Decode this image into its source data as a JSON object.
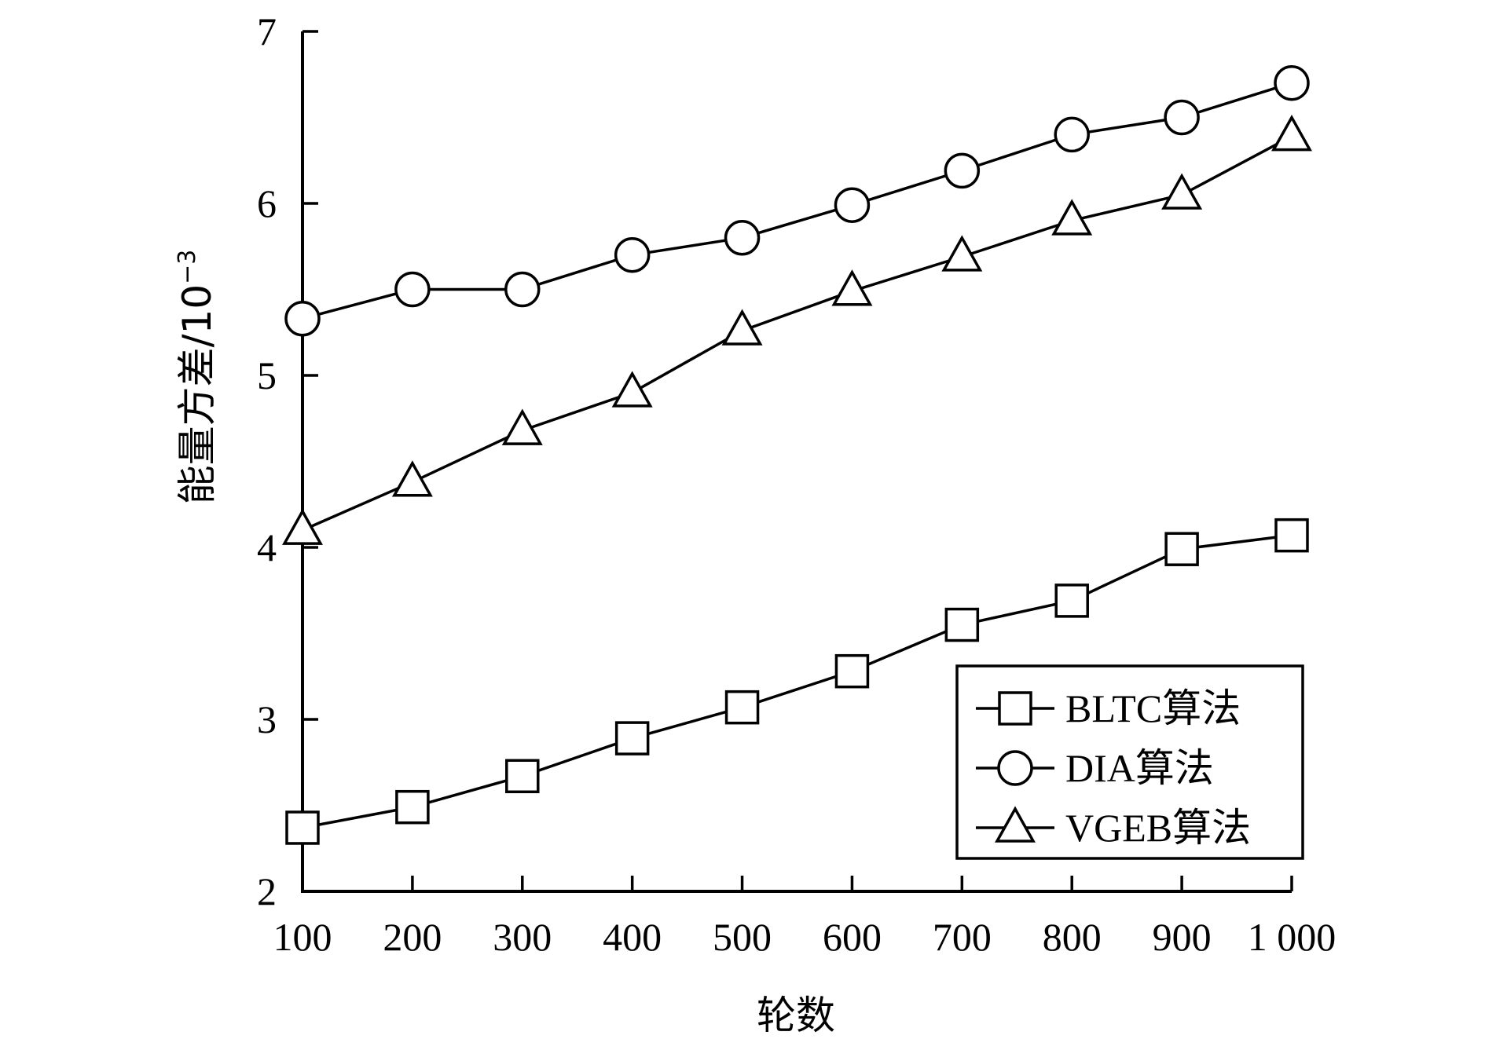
{
  "chart_data": {
    "type": "line",
    "xlabel": "轮数",
    "ylabel": "能量方差/10",
    "ylabel_exponent": "−3",
    "x": [
      100,
      200,
      300,
      400,
      500,
      600,
      700,
      800,
      900,
      1000
    ],
    "x_tick_labels": [
      "100",
      "200",
      "300",
      "400",
      "500",
      "600",
      "700",
      "800",
      "900",
      "1 000"
    ],
    "y_ticks": [
      2,
      3,
      4,
      5,
      6,
      7
    ],
    "ylim": [
      2,
      7
    ],
    "grid": false,
    "legend_position": "bottom-right",
    "series": [
      {
        "name": "BLTC算法",
        "marker": "square",
        "color": "#000000",
        "values": [
          2.37,
          2.49,
          2.67,
          2.89,
          3.07,
          3.28,
          3.55,
          3.69,
          3.99,
          4.07
        ]
      },
      {
        "name": "DIA算法",
        "marker": "circle",
        "color": "#000000",
        "values": [
          5.33,
          5.5,
          5.5,
          5.7,
          5.8,
          5.99,
          6.19,
          6.4,
          6.5,
          6.7
        ]
      },
      {
        "name": "VGEB算法",
        "marker": "triangle",
        "color": "#000000",
        "values": [
          4.1,
          4.38,
          4.68,
          4.9,
          5.26,
          5.49,
          5.69,
          5.9,
          6.05,
          6.39
        ]
      }
    ]
  }
}
